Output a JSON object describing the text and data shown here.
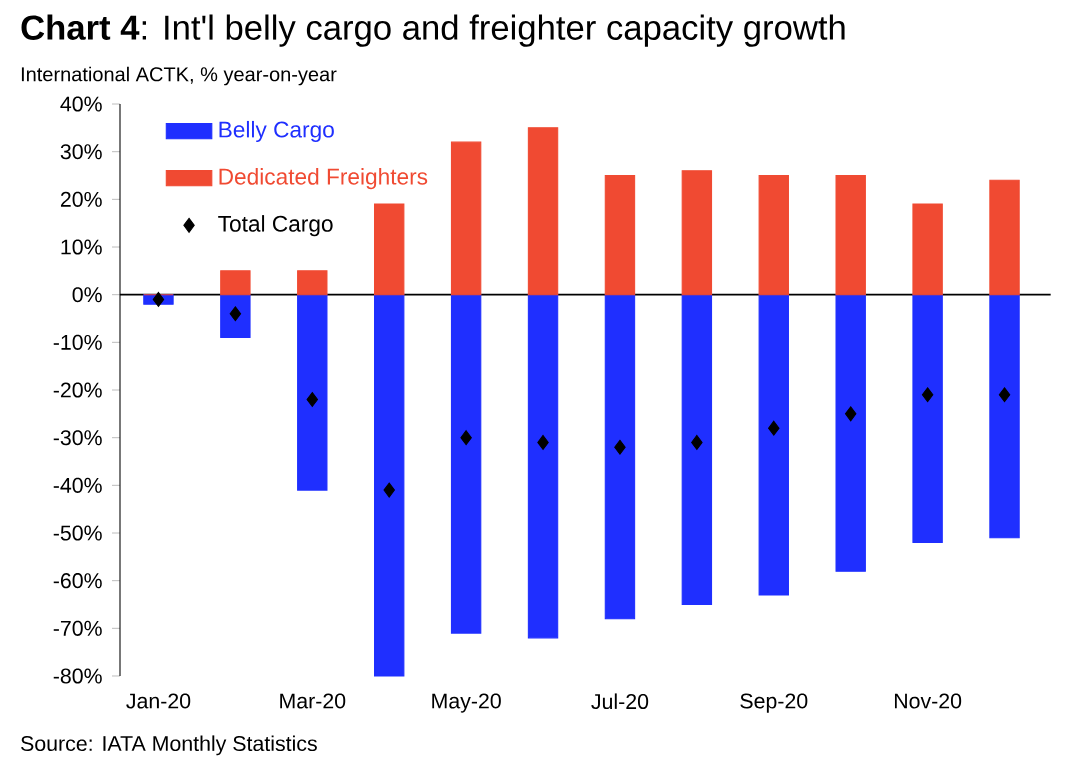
{
  "chart_data": {
    "type": "bar",
    "title": "**Chart 4**: Int'l belly cargo and freighter capacity growth",
    "ylabel": "International ACTK, % year-on-year",
    "annotations": [
      "Source: IATA Monthly Statistics"
    ],
    "categories": [
      "Jan-20",
      null,
      "Mar-20",
      null,
      "May-20",
      null,
      "Jul-20",
      null,
      "Sep-20",
      null,
      "Nov-20",
      null
    ],
    "stacked": true,
    "legend": "top left",
    "marker": "diamond",
    "series": [
      {
        "name": "Belly Cargo",
        "color": "#1f2fff",
        "values": [
          -2,
          -9,
          -41,
          -80,
          -71,
          -72,
          -68,
          -65,
          -63,
          -58,
          -52,
          -51
        ]
      },
      {
        "name": "Dedicated Freighters",
        "color": "#f04a32",
        "values": [
          0,
          5,
          5,
          19,
          32,
          35,
          25,
          26,
          25,
          25,
          19,
          24
        ]
      },
      {
        "name": "Total Cargo",
        "type": "scatter",
        "color": "#000000",
        "values": [
          -1,
          -4,
          -22,
          -41,
          -30,
          -31,
          -32,
          -31,
          -28,
          -25,
          -21,
          -21
        ]
      }
    ],
    "ylim": [
      -80,
      40
    ],
    "yticks": [
      {
        "value": -80,
        "label": "-80%"
      },
      {
        "value": -70,
        "label": "-70%"
      },
      {
        "value": -60,
        "label": "-60%"
      },
      {
        "value": -50,
        "label": "-50%"
      },
      {
        "value": -40,
        "label": "-40%"
      },
      {
        "value": -30,
        "label": "-30%"
      },
      {
        "value": -20,
        "label": "-20%"
      },
      {
        "value": -10,
        "label": "-10%"
      },
      {
        "value": 0,
        "label": "0%"
      },
      {
        "value": 10,
        "label": "10%"
      },
      {
        "value": 20,
        "label": "20%"
      },
      {
        "value": 30,
        "label": "30%"
      },
      {
        "value": 40,
        "label": "40%"
      }
    ]
  }
}
